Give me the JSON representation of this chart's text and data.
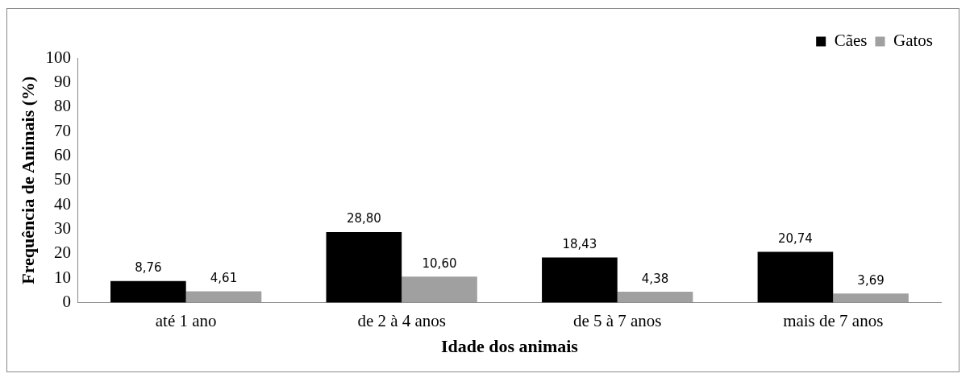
{
  "chart_data": {
    "type": "bar",
    "xlabel": "Idade dos animais",
    "ylabel": "Frequência de Animais (%)",
    "categories": [
      "até 1 ano",
      "de 2 à 4 anos",
      "de 5 à 7 anos",
      "mais de 7 anos"
    ],
    "series": [
      {
        "name": "Cães",
        "color": "#000000",
        "values": [
          8.76,
          28.8,
          18.43,
          20.74
        ]
      },
      {
        "name": "Gatos",
        "color": "#a0a0a0",
        "values": [
          4.61,
          10.6,
          4.38,
          3.69
        ]
      }
    ],
    "value_labels": [
      [
        "8,76",
        "28,80",
        "18,43",
        "20,74"
      ],
      [
        "4,61",
        "10,60",
        "4,38",
        "3,69"
      ]
    ],
    "ylim": [
      0,
      100
    ],
    "yticks": [
      0,
      10,
      20,
      30,
      40,
      50,
      60,
      70,
      80,
      90,
      100
    ],
    "grid": false,
    "legend": "top right"
  }
}
